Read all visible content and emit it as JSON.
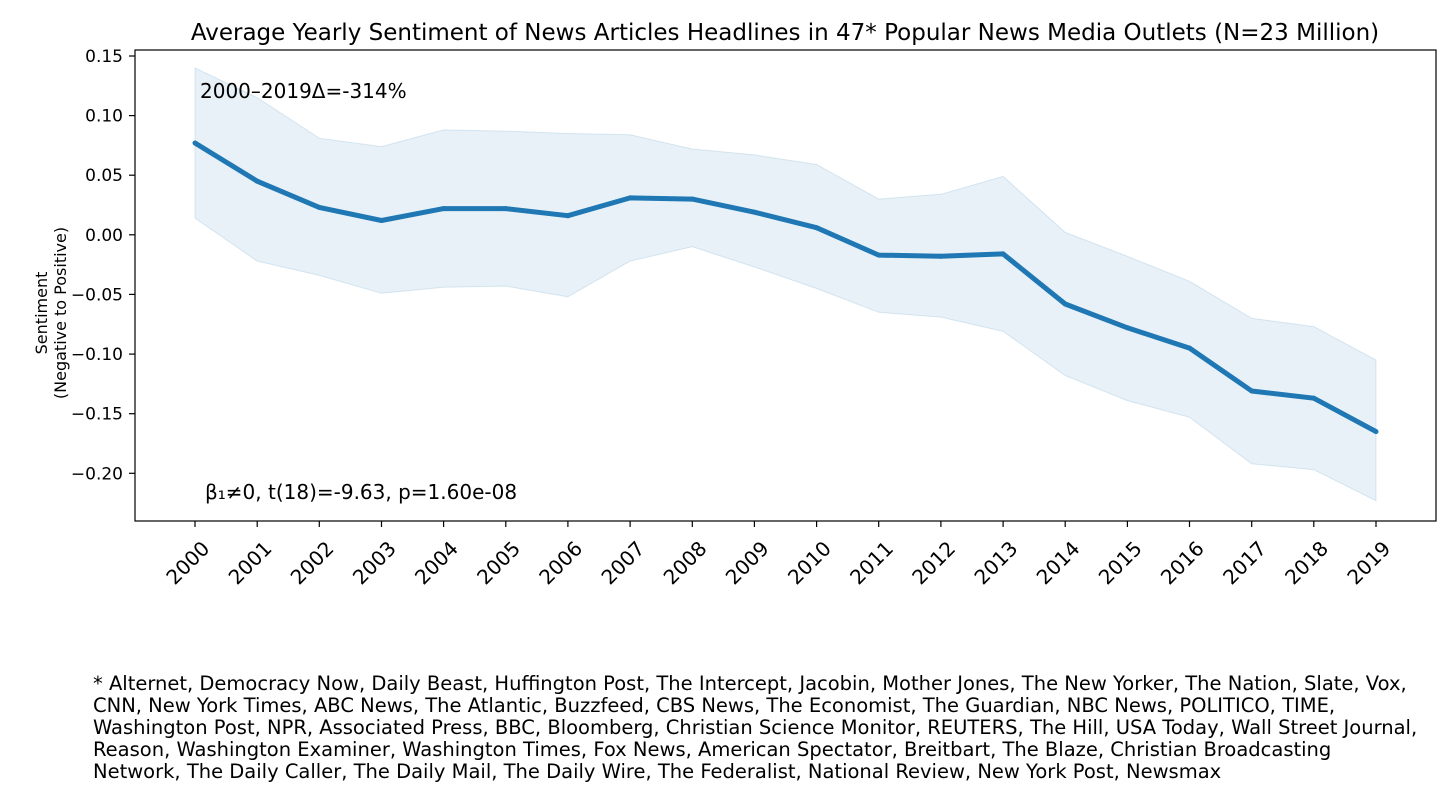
{
  "chart_data": {
    "type": "line",
    "title": "Average Yearly Sentiment of News Articles Headlines in 47* Popular News Media Outlets (N=23 Million)",
    "ylabel": [
      "Sentiment",
      "(Negative to Positive)"
    ],
    "xlabel": "",
    "x": [
      "2000",
      "2001",
      "2002",
      "2003",
      "2004",
      "2005",
      "2006",
      "2007",
      "2008",
      "2009",
      "2010",
      "2011",
      "2012",
      "2013",
      "2014",
      "2015",
      "2016",
      "2017",
      "2018",
      "2019"
    ],
    "series": [
      {
        "name": "Average sentiment",
        "color": "#1f77b4",
        "values": [
          0.077,
          0.045,
          0.023,
          0.012,
          0.022,
          0.022,
          0.016,
          0.031,
          0.03,
          0.019,
          0.006,
          -0.017,
          -0.018,
          -0.016,
          -0.058,
          -0.078,
          -0.095,
          -0.131,
          -0.137,
          -0.165
        ]
      }
    ],
    "band": {
      "name": "Confidence band",
      "color": "#1f77b4",
      "upper": [
        0.14,
        0.115,
        0.081,
        0.074,
        0.088,
        0.087,
        0.085,
        0.084,
        0.072,
        0.067,
        0.059,
        0.03,
        0.034,
        0.049,
        0.002,
        -0.018,
        -0.039,
        -0.07,
        -0.077,
        -0.105
      ],
      "lower": [
        0.014,
        -0.022,
        -0.034,
        -0.049,
        -0.044,
        -0.043,
        -0.052,
        -0.022,
        -0.01,
        -0.027,
        -0.045,
        -0.065,
        -0.069,
        -0.081,
        -0.118,
        -0.139,
        -0.153,
        -0.192,
        -0.197,
        -0.223
      ]
    },
    "yticks": [
      "0.15",
      "0.10",
      "0.05",
      "0.00",
      "−0.05",
      "−0.10",
      "−0.15",
      "−0.20"
    ],
    "ytick_values": [
      0.15,
      0.1,
      0.05,
      0.0,
      -0.05,
      -0.1,
      -0.15,
      -0.2
    ],
    "ylim": [
      -0.24,
      0.155
    ],
    "grid": false,
    "annotations": {
      "delta": "2000–2019Δ=-314%",
      "stats": "β₁≠0, t(18)=-9.63, p=1.60e-08"
    }
  },
  "footnote": "* Alternet, Democracy Now, Daily Beast, Huffington Post, The Intercept, Jacobin, Mother Jones, The New Yorker, The Nation, Slate, Vox, CNN, New York Times, ABC News, The Atlantic, Buzzfeed, CBS News, The Economist, The Guardian, NBC News, POLITICO, TIME, Washington Post, NPR, Associated Press, BBC, Bloomberg, Christian Science Monitor, REUTERS, The Hill, USA Today, Wall Street Journal, Reason, Washington Examiner, Washington Times, Fox News, American Spectator, Breitbart, The Blaze, Christian Broadcasting Network, The Daily Caller, The Daily Mail, The Daily Wire, The Federalist, National Review, New York Post, Newsmax"
}
